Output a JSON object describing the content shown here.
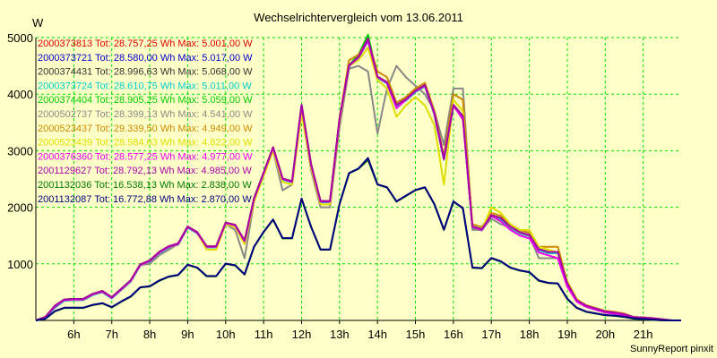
{
  "colors": {
    "background": "#ffffc8",
    "grid": "#00dd00",
    "axis": "#000000",
    "text": "#000000"
  },
  "footer": "SunnyReport pinxit",
  "chart_data": {
    "type": "line",
    "title": "Wechselrichtervergleich vom 13.06.2011",
    "xlabel": "",
    "ylabel": "W",
    "x_unit": "hour of day",
    "xlim": [
      5.0,
      22.0
    ],
    "ylim": [
      0,
      5000
    ],
    "yticks": [
      1000,
      2000,
      3000,
      4000,
      5000
    ],
    "xtick_labels": [
      "6h",
      "7h",
      "8h",
      "9h",
      "10h",
      "11h",
      "12h",
      "13h",
      "14h",
      "15h",
      "16h",
      "17h",
      "18h",
      "19h",
      "20h",
      "21h"
    ],
    "xtick_values": [
      6,
      7,
      8,
      9,
      10,
      11,
      12,
      13,
      14,
      15,
      16,
      17,
      18,
      19,
      20,
      21
    ],
    "grid": true,
    "legend_position": "top-left",
    "x": [
      5.0,
      5.25,
      5.5,
      5.75,
      6.0,
      6.25,
      6.5,
      6.75,
      7.0,
      7.25,
      7.5,
      7.75,
      8.0,
      8.25,
      8.5,
      8.75,
      9.0,
      9.25,
      9.5,
      9.75,
      10.0,
      10.25,
      10.5,
      10.75,
      11.0,
      11.25,
      11.5,
      11.75,
      12.0,
      12.25,
      12.5,
      12.75,
      13.0,
      13.25,
      13.5,
      13.75,
      14.0,
      14.25,
      14.5,
      14.75,
      15.0,
      15.25,
      15.5,
      15.75,
      16.0,
      16.25,
      16.5,
      16.75,
      17.0,
      17.25,
      17.5,
      17.75,
      18.0,
      18.25,
      18.5,
      18.75,
      19.0,
      19.25,
      19.5,
      19.75,
      20.0,
      20.25,
      20.5,
      20.75,
      21.0,
      21.25,
      21.5,
      21.75,
      22.0
    ],
    "series": [
      {
        "name": "2000373813",
        "legend": "2000373813 Tot: 28.757,25 Wh Max: 5.001,00 W",
        "color": "#dd0000",
        "values": [
          0,
          60,
          250,
          360,
          370,
          370,
          460,
          510,
          400,
          550,
          700,
          980,
          1050,
          1200,
          1300,
          1350,
          1650,
          1550,
          1300,
          1300,
          1720,
          1680,
          1400,
          2150,
          2600,
          3050,
          2500,
          2450,
          3800,
          2750,
          2100,
          2100,
          3550,
          4500,
          4650,
          4950,
          4300,
          4200,
          3800,
          3900,
          4050,
          4150,
          3650,
          2850,
          3800,
          3600,
          1650,
          1600,
          1850,
          1800,
          1650,
          1550,
          1500,
          1250,
          1200,
          1200,
          650,
          350,
          250,
          200,
          150,
          130,
          100,
          50,
          40,
          30,
          10,
          0,
          0
        ]
      },
      {
        "name": "2000373721",
        "legend": "2000373721 Tot: 28.580,00 Wh Max: 5.017,00 W",
        "color": "#0000cc",
        "values": [
          0,
          50,
          230,
          350,
          360,
          360,
          450,
          500,
          390,
          540,
          690,
          970,
          1040,
          1190,
          1290,
          1340,
          1640,
          1540,
          1290,
          1290,
          1710,
          1670,
          1390,
          2140,
          2590,
          3040,
          2490,
          2440,
          3790,
          2740,
          2090,
          2090,
          3540,
          4490,
          4640,
          4940,
          4290,
          4190,
          3790,
          3890,
          4040,
          4140,
          3640,
          2840,
          3790,
          3590,
          1640,
          1590,
          1840,
          1790,
          1640,
          1540,
          1490,
          1240,
          1190,
          1190,
          640,
          340,
          240,
          190,
          140,
          120,
          90,
          40,
          30,
          20,
          10,
          0,
          0
        ]
      },
      {
        "name": "2000374431",
        "legend": "2000374431 Tot: 28.996,63 Wh Max: 5.068,00 W",
        "color": "#333333",
        "values": [
          0,
          60,
          260,
          370,
          380,
          380,
          470,
          520,
          410,
          560,
          710,
          990,
          1060,
          1210,
          1310,
          1360,
          1660,
          1560,
          1310,
          1310,
          1730,
          1690,
          1410,
          2160,
          2610,
          3060,
          2510,
          2460,
          3810,
          2760,
          2110,
          2110,
          3560,
          4510,
          4660,
          4960,
          4310,
          4210,
          3810,
          3910,
          4060,
          4160,
          3660,
          2860,
          3810,
          3610,
          1660,
          1610,
          1860,
          1810,
          1660,
          1560,
          1510,
          1260,
          1210,
          1210,
          660,
          360,
          260,
          210,
          160,
          140,
          110,
          60,
          50,
          40,
          20,
          0,
          0
        ]
      },
      {
        "name": "2000373724",
        "legend": "2000373724 Tot: 28.610,75 Wh Max: 5.011,00 W",
        "color": "#00cccc",
        "values": [
          0,
          50,
          240,
          350,
          360,
          360,
          450,
          500,
          390,
          540,
          690,
          970,
          1040,
          1190,
          1290,
          1340,
          1640,
          1540,
          1290,
          1290,
          1710,
          1670,
          1390,
          2140,
          2590,
          3040,
          2490,
          2440,
          3790,
          2740,
          2090,
          2090,
          3540,
          4490,
          4640,
          4940,
          4290,
          4190,
          3790,
          3890,
          4040,
          4140,
          3640,
          2840,
          3790,
          3590,
          1640,
          1590,
          1840,
          1790,
          1640,
          1540,
          1490,
          1240,
          1190,
          1190,
          640,
          340,
          240,
          190,
          140,
          120,
          90,
          40,
          30,
          20,
          10,
          0,
          0
        ]
      },
      {
        "name": "2000374404",
        "legend": "2000374404 Tot: 28.905,25 Wh Max: 5.059,00 W",
        "color": "#00cc00",
        "values": [
          0,
          60,
          260,
          370,
          380,
          380,
          470,
          520,
          410,
          560,
          710,
          990,
          1060,
          1210,
          1310,
          1360,
          1660,
          1560,
          1310,
          1310,
          1730,
          1690,
          1410,
          2160,
          2610,
          3060,
          2510,
          2460,
          3810,
          2760,
          2110,
          2110,
          3560,
          4510,
          4700,
          5050,
          4310,
          4210,
          3810,
          3910,
          4060,
          4160,
          3660,
          2860,
          3810,
          3610,
          1660,
          1610,
          1860,
          1810,
          1660,
          1560,
          1510,
          1260,
          1210,
          1210,
          660,
          360,
          260,
          210,
          160,
          140,
          110,
          60,
          50,
          40,
          20,
          0,
          0
        ]
      },
      {
        "name": "2000502737",
        "legend": "2000502737 Tot: 28.399,13 Wh Max: 4.541,00 W",
        "color": "#888888",
        "values": [
          0,
          60,
          250,
          360,
          370,
          370,
          460,
          510,
          400,
          550,
          700,
          980,
          1000,
          1150,
          1250,
          1350,
          1650,
          1550,
          1300,
          1300,
          1700,
          1600,
          1100,
          2100,
          2600,
          3000,
          2300,
          2400,
          3700,
          2650,
          2000,
          2000,
          3400,
          4450,
          4500,
          4400,
          3300,
          4100,
          4500,
          4300,
          4150,
          4000,
          3700,
          3100,
          4100,
          4100,
          1600,
          1600,
          1800,
          1700,
          1650,
          1550,
          1500,
          1100,
          1100,
          1100,
          600,
          350,
          250,
          200,
          150,
          130,
          100,
          50,
          40,
          30,
          10,
          0,
          0
        ]
      },
      {
        "name": "2000523437",
        "legend": "2000523437 Tot: 29.339,50 Wh Max: 4.949,00 W",
        "color": "#cc8800",
        "values": [
          0,
          60,
          260,
          370,
          380,
          380,
          470,
          520,
          410,
          560,
          710,
          990,
          1060,
          1210,
          1310,
          1360,
          1660,
          1560,
          1310,
          1310,
          1730,
          1690,
          1410,
          2160,
          2610,
          3060,
          2510,
          2460,
          3700,
          2760,
          2110,
          2110,
          3560,
          4600,
          4700,
          4950,
          4400,
          4300,
          3850,
          3950,
          4100,
          4200,
          3700,
          2900,
          4000,
          3900,
          1700,
          1650,
          1900,
          1850,
          1700,
          1600,
          1550,
          1300,
          1300,
          1300,
          680,
          370,
          270,
          220,
          170,
          150,
          120,
          60,
          50,
          40,
          20,
          0,
          0
        ]
      },
      {
        "name": "2000523439",
        "legend": "2000523439 Tot: 28.584,63 Wh Max: 4.822,00 W",
        "color": "#dddd00",
        "values": [
          0,
          60,
          250,
          360,
          370,
          370,
          460,
          510,
          400,
          550,
          700,
          980,
          1050,
          1200,
          1300,
          1350,
          1650,
          1550,
          1250,
          1250,
          1700,
          1650,
          1350,
          2100,
          2550,
          3000,
          2450,
          2400,
          3650,
          2700,
          2050,
          2050,
          3500,
          4500,
          4600,
          4822,
          4250,
          4100,
          3600,
          3800,
          3950,
          3800,
          3450,
          2400,
          3900,
          3700,
          1650,
          1600,
          2000,
          1900,
          1700,
          1600,
          1600,
          1300,
          1250,
          1200,
          700,
          380,
          260,
          210,
          160,
          140,
          110,
          60,
          50,
          40,
          20,
          0,
          0
        ]
      },
      {
        "name": "2000376360",
        "legend": "2000376360 Tot: 28.577,25 Wh Max: 4.977,00 W",
        "color": "#ee00ee",
        "values": [
          0,
          60,
          250,
          360,
          370,
          370,
          460,
          510,
          400,
          550,
          700,
          980,
          1050,
          1200,
          1300,
          1350,
          1650,
          1550,
          1300,
          1300,
          1720,
          1680,
          1400,
          2150,
          2600,
          3050,
          2500,
          2450,
          3800,
          2750,
          2100,
          2100,
          3550,
          4500,
          4650,
          4950,
          4300,
          4200,
          3750,
          3900,
          4050,
          4150,
          3650,
          2850,
          3800,
          3550,
          1650,
          1600,
          1850,
          1750,
          1600,
          1500,
          1450,
          1200,
          1150,
          1100,
          600,
          330,
          240,
          190,
          140,
          120,
          90,
          40,
          30,
          20,
          10,
          0,
          0
        ]
      },
      {
        "name": "2001129627",
        "legend": "2001129627 Tot: 28.792,13 Wh Max: 4.985,00 W",
        "color": "#aa00aa",
        "values": [
          0,
          60,
          260,
          370,
          380,
          380,
          470,
          520,
          410,
          560,
          710,
          990,
          1060,
          1210,
          1310,
          1360,
          1660,
          1560,
          1310,
          1310,
          1730,
          1690,
          1410,
          2160,
          2610,
          3060,
          2510,
          2460,
          3810,
          2760,
          2110,
          2110,
          3560,
          4510,
          4660,
          4985,
          4310,
          4210,
          3810,
          3910,
          4060,
          4160,
          3660,
          2860,
          3810,
          3610,
          1660,
          1610,
          1860,
          1810,
          1660,
          1560,
          1510,
          1260,
          1210,
          1210,
          660,
          360,
          260,
          210,
          160,
          140,
          110,
          60,
          50,
          40,
          20,
          0,
          0
        ]
      },
      {
        "name": "2001132036",
        "legend": "2001132036 Tot: 16.538,13 Wh Max: 2.838,00 W",
        "color": "#007700",
        "values": [
          0,
          30,
          160,
          220,
          220,
          220,
          270,
          300,
          230,
          330,
          420,
          580,
          600,
          700,
          770,
          800,
          980,
          930,
          780,
          780,
          1000,
          970,
          810,
          1300,
          1560,
          1780,
          1450,
          1450,
          2150,
          1650,
          1250,
          1250,
          2050,
          2600,
          2680,
          2838,
          2400,
          2350,
          2100,
          2200,
          2300,
          2350,
          2050,
          1600,
          2100,
          1980,
          930,
          920,
          1100,
          1040,
          930,
          880,
          850,
          700,
          660,
          650,
          380,
          220,
          150,
          120,
          90,
          80,
          60,
          30,
          20,
          10,
          0,
          0,
          0
        ]
      },
      {
        "name": "2001132087",
        "legend": "2001132087 Tot: 16.772,88 Wh Max: 2.870,00 W",
        "color": "#000080",
        "values": [
          0,
          30,
          165,
          225,
          225,
          225,
          275,
          305,
          235,
          335,
          425,
          585,
          605,
          705,
          775,
          805,
          985,
          935,
          785,
          785,
          1005,
          975,
          815,
          1305,
          1565,
          1785,
          1455,
          1455,
          2155,
          1655,
          1255,
          1255,
          2055,
          2605,
          2685,
          2870,
          2405,
          2355,
          2105,
          2205,
          2305,
          2355,
          2055,
          1605,
          2105,
          1985,
          935,
          925,
          1105,
          1045,
          935,
          885,
          855,
          705,
          665,
          655,
          385,
          225,
          155,
          125,
          95,
          85,
          65,
          35,
          25,
          15,
          5,
          0,
          0
        ]
      }
    ]
  }
}
